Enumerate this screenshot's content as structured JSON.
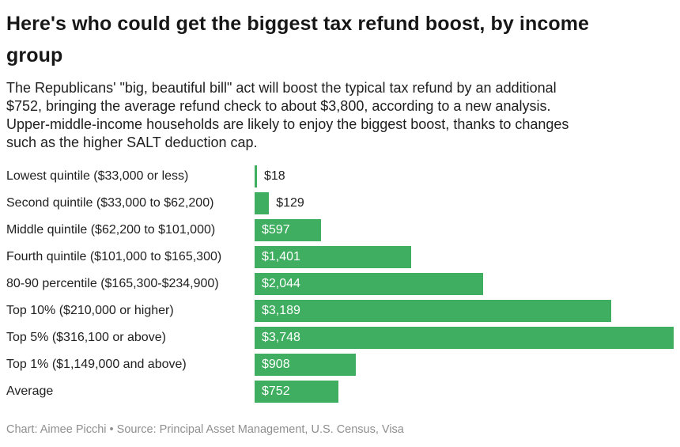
{
  "header": {
    "title": "Here's who could get the biggest tax refund boost, by income group",
    "description": "The Republicans' \"big, beautiful bill\" act will boost the typical tax refund by an additional $752, bringing the average refund check to about $3,800, according to a new analysis. Upper-middle-income households are likely to enjoy the biggest boost, thanks to changes such as the higher SALT deduction cap."
  },
  "footer": {
    "credit": "Chart: Aimee Picchi • Source: Principal Asset Management, U.S. Census, Visa"
  },
  "chart_data": {
    "type": "bar",
    "orientation": "horizontal",
    "title": "Here's who could get the biggest tax refund boost, by income group",
    "categories": [
      "Lowest quintile ($33,000 or less)",
      "Second quintile ($33,000 to $62,200)",
      "Middle quintile ($62,200 to $101,000)",
      "Fourth quintile ($101,000 to $165,300)",
      "80-90 percentile ($165,300-$234,900)",
      "Top 10% ($210,000 or higher)",
      "Top 5% ($316,100 or above)",
      "Top 1% ($1,149,000 and above)",
      "Average"
    ],
    "values": [
      18,
      129,
      597,
      1401,
      2044,
      3189,
      3748,
      908,
      752
    ],
    "value_labels": [
      "$18",
      "$129",
      "$597",
      "$1,401",
      "$2,044",
      "$3,189",
      "$3,748",
      "$908",
      "$752"
    ],
    "xlabel": "",
    "ylabel": "",
    "xlim": [
      0,
      3748
    ],
    "grid": false,
    "legend": false,
    "bar_color": "#3FAE60",
    "value_label_color_inside": "#ffffff",
    "value_label_color_outside": "#1f1f1f"
  }
}
